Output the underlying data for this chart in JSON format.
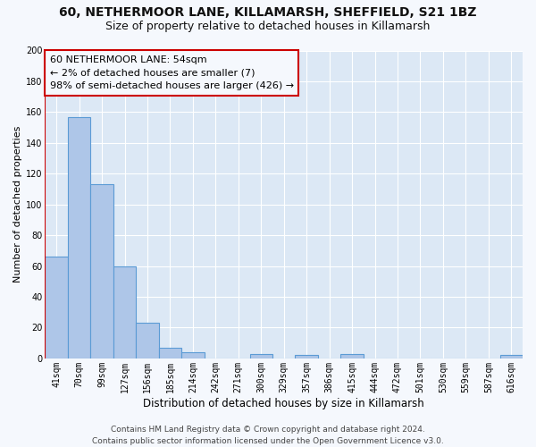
{
  "title_line1": "60, NETHERMOOR LANE, KILLAMARSH, SHEFFIELD, S21 1BZ",
  "title_line2": "Size of property relative to detached houses in Killamarsh",
  "xlabel": "Distribution of detached houses by size in Killamarsh",
  "ylabel": "Number of detached properties",
  "bin_labels": [
    "41sqm",
    "70sqm",
    "99sqm",
    "127sqm",
    "156sqm",
    "185sqm",
    "214sqm",
    "242sqm",
    "271sqm",
    "300sqm",
    "329sqm",
    "357sqm",
    "386sqm",
    "415sqm",
    "444sqm",
    "472sqm",
    "501sqm",
    "530sqm",
    "559sqm",
    "587sqm",
    "616sqm"
  ],
  "bar_values": [
    66,
    157,
    113,
    60,
    23,
    7,
    4,
    0,
    0,
    3,
    0,
    2,
    0,
    3,
    0,
    0,
    0,
    0,
    0,
    0,
    2
  ],
  "bar_color": "#aec6e8",
  "bar_edgecolor": "#5b9bd5",
  "highlight_color": "#cc0000",
  "annotation_title": "60 NETHERMOOR LANE: 54sqm",
  "annotation_line1": "← 2% of detached houses are smaller (7)",
  "annotation_line2": "98% of semi-detached houses are larger (426) →",
  "annotation_box_edgecolor": "#cc0000",
  "annotation_box_facecolor": "#f5f8fd",
  "ylim": [
    0,
    200
  ],
  "yticks": [
    0,
    20,
    40,
    60,
    80,
    100,
    120,
    140,
    160,
    180,
    200
  ],
  "footer_line1": "Contains HM Land Registry data © Crown copyright and database right 2024.",
  "footer_line2": "Contains public sector information licensed under the Open Government Licence v3.0.",
  "fig_background_color": "#f5f8fd",
  "plot_bg_color": "#dce8f5",
  "grid_color": "#ffffff",
  "title1_fontsize": 10,
  "title2_fontsize": 9,
  "xlabel_fontsize": 8.5,
  "ylabel_fontsize": 8,
  "tick_fontsize": 7,
  "footer_fontsize": 6.5,
  "annotation_fontsize": 8
}
